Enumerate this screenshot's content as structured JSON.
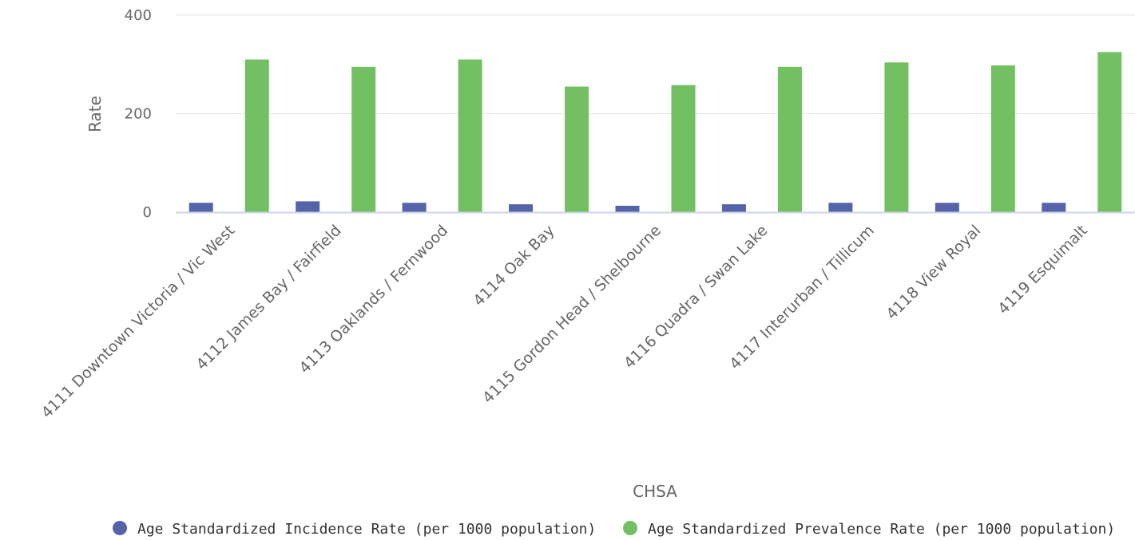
{
  "chart_data": {
    "type": "bar",
    "xlabel": "CHSA",
    "ylabel": "Rate",
    "ylim": [
      0,
      400
    ],
    "yticks": [
      "0",
      "200",
      "400"
    ],
    "grid": true,
    "legend_position": "bottom",
    "categories": [
      "4111 Downtown Victoria / Vic West",
      "4112 James Bay / Fairfield",
      "4113 Oaklands / Fernwood",
      "4114 Oak Bay",
      "4115 Gordon Head / Shelbourne",
      "4116 Quadra / Swan Lake",
      "4117 Interurban / Tillicum",
      "4118 View Royal",
      "4119 Esquimalt"
    ],
    "series": [
      {
        "name": "Age Standardized Incidence Rate (per 1000 population)",
        "color": "#5563a8",
        "values": [
          19,
          22,
          19,
          16,
          13,
          16,
          19,
          19,
          19
        ]
      },
      {
        "name": "Age Standardized Prevalence Rate (per 1000 population)",
        "color": "#72c062",
        "values": [
          310,
          295,
          310,
          255,
          258,
          295,
          304,
          298,
          325
        ]
      }
    ]
  },
  "colors": {
    "gridline": "#e6e6e6",
    "baseline": "#ccd6eb",
    "text": "#666666"
  }
}
